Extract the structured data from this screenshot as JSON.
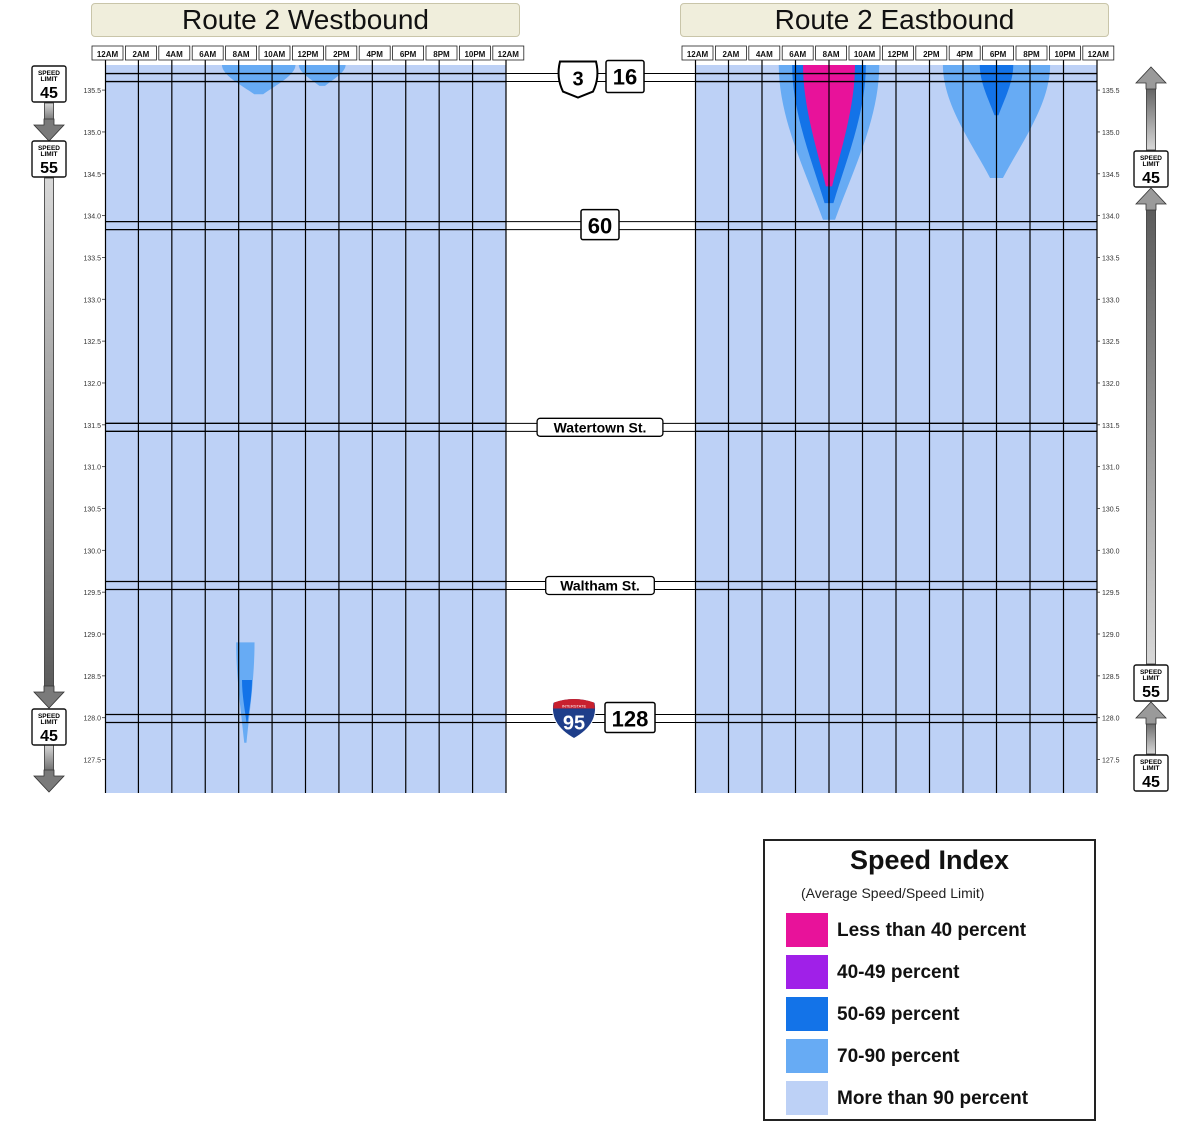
{
  "panels": {
    "westbound_title": "Route 2 Westbound",
    "eastbound_title": "Route 2 Eastbound"
  },
  "time_ticks": [
    "12AM",
    "2AM",
    "4AM",
    "6AM",
    "8AM",
    "10AM",
    "12PM",
    "2PM",
    "4PM",
    "6PM",
    "8PM",
    "10PM",
    "12AM"
  ],
  "mile_ticks": [
    "135.5",
    "135.0",
    "134.5",
    "134.0",
    "133.5",
    "133.0",
    "132.5",
    "132.0",
    "131.5",
    "131.0",
    "130.5",
    "130.0",
    "129.5",
    "129.0",
    "128.5",
    "128.0",
    "127.5"
  ],
  "crossroads": [
    {
      "label": "3",
      "label2": "16",
      "milepost": 135.65,
      "shield": "us-route",
      "icon": "us-route-shield-icon"
    },
    {
      "label": "60",
      "milepost": 133.88,
      "shield": "box",
      "icon": ""
    },
    {
      "label": "Watertown St.",
      "milepost": 131.47,
      "shield": "street",
      "icon": ""
    },
    {
      "label": "Waltham St.",
      "milepost": 129.58,
      "shield": "street",
      "icon": ""
    },
    {
      "label": "95",
      "label2": "128",
      "shield_header": "INTERSTATE",
      "milepost": 127.99,
      "shield": "interstate",
      "icon": "interstate-shield-icon"
    }
  ],
  "speed_limit_text": {
    "top": "SPEED",
    "bottom": "LIMIT"
  },
  "speed_limits": {
    "westbound": [
      {
        "value": "45",
        "milepost": 135.6
      },
      {
        "value": "55",
        "milepost": 134.75
      },
      {
        "value": "45",
        "milepost": 127.85
      }
    ],
    "eastbound": [
      {
        "value": "45",
        "milepost": 134.5
      },
      {
        "value": "55",
        "milepost": 128.3
      },
      {
        "value": "45",
        "milepost": 127.2
      }
    ]
  },
  "colors": {
    "lt40": "#e8129a",
    "p40_49": "#a020e8",
    "p50_69": "#1373e8",
    "p70_90": "#67abf4",
    "gt90": "#bdd1f6",
    "grid": "#000000"
  },
  "chart_data": {
    "type": "heatmap",
    "title": "",
    "x_label": "",
    "y_label": "",
    "x_range": [
      "12AM",
      "12AM"
    ],
    "y_range": [
      127.1,
      135.8
    ],
    "x_ticks": [
      "12AM",
      "2AM",
      "4AM",
      "6AM",
      "8AM",
      "10AM",
      "12PM",
      "2PM",
      "4PM",
      "6PM",
      "8PM",
      "10PM",
      "12AM"
    ],
    "y_ticks": [
      135.5,
      135.0,
      134.5,
      134.0,
      133.5,
      133.0,
      132.5,
      132.0,
      131.5,
      131.0,
      130.5,
      130.0,
      129.5,
      129.0,
      128.5,
      128.0,
      127.5
    ],
    "background_class": "More than 90 percent",
    "panels": [
      {
        "name": "Route 2 Westbound",
        "regions": [
          {
            "class": "70-90 percent",
            "hour_center": 8.4,
            "hour_halfwidth": 0.55,
            "mile_top": 128.9,
            "mile_bottom": 127.7
          },
          {
            "class": "50-69 percent",
            "hour_center": 8.5,
            "hour_halfwidth": 0.3,
            "mile_top": 128.45,
            "mile_bottom": 127.95
          },
          {
            "class": "70-90 percent",
            "hour_center": 9.2,
            "hour_halfwidth": 2.2,
            "mile_top": 135.8,
            "mile_bottom": 135.45
          },
          {
            "class": "70-90 percent",
            "hour_center": 13.0,
            "hour_halfwidth": 1.4,
            "mile_top": 135.8,
            "mile_bottom": 135.55
          }
        ]
      },
      {
        "name": "Route 2 Eastbound",
        "regions": [
          {
            "class": "70-90 percent",
            "hour_center": 8.0,
            "hour_halfwidth": 3.0,
            "mile_top": 135.8,
            "mile_bottom": 133.95
          },
          {
            "class": "50-69 percent",
            "hour_center": 8.0,
            "hour_halfwidth": 2.2,
            "mile_top": 135.8,
            "mile_bottom": 134.15
          },
          {
            "class": "Less than 40 percent",
            "hour_center": 8.0,
            "hour_halfwidth": 1.55,
            "mile_top": 135.8,
            "mile_bottom": 134.35
          },
          {
            "class": "70-90 percent",
            "hour_center": 18.0,
            "hour_halfwidth": 3.2,
            "mile_top": 135.8,
            "mile_bottom": 134.45
          },
          {
            "class": "50-69 percent",
            "hour_center": 18.0,
            "hour_halfwidth": 1.0,
            "mile_top": 135.8,
            "mile_bottom": 135.2
          }
        ]
      }
    ]
  },
  "legend": {
    "title": "Speed Index",
    "subtitle": "(Average Speed/Speed Limit)",
    "items": [
      {
        "label": "Less than 40 percent",
        "color": "#e8129a"
      },
      {
        "label": "40-49 percent",
        "color": "#a020e8"
      },
      {
        "label": "50-69 percent",
        "color": "#1373e8"
      },
      {
        "label": "70-90 percent",
        "color": "#67abf4"
      },
      {
        "label": "More than 90 percent",
        "color": "#bdd1f6"
      }
    ]
  }
}
